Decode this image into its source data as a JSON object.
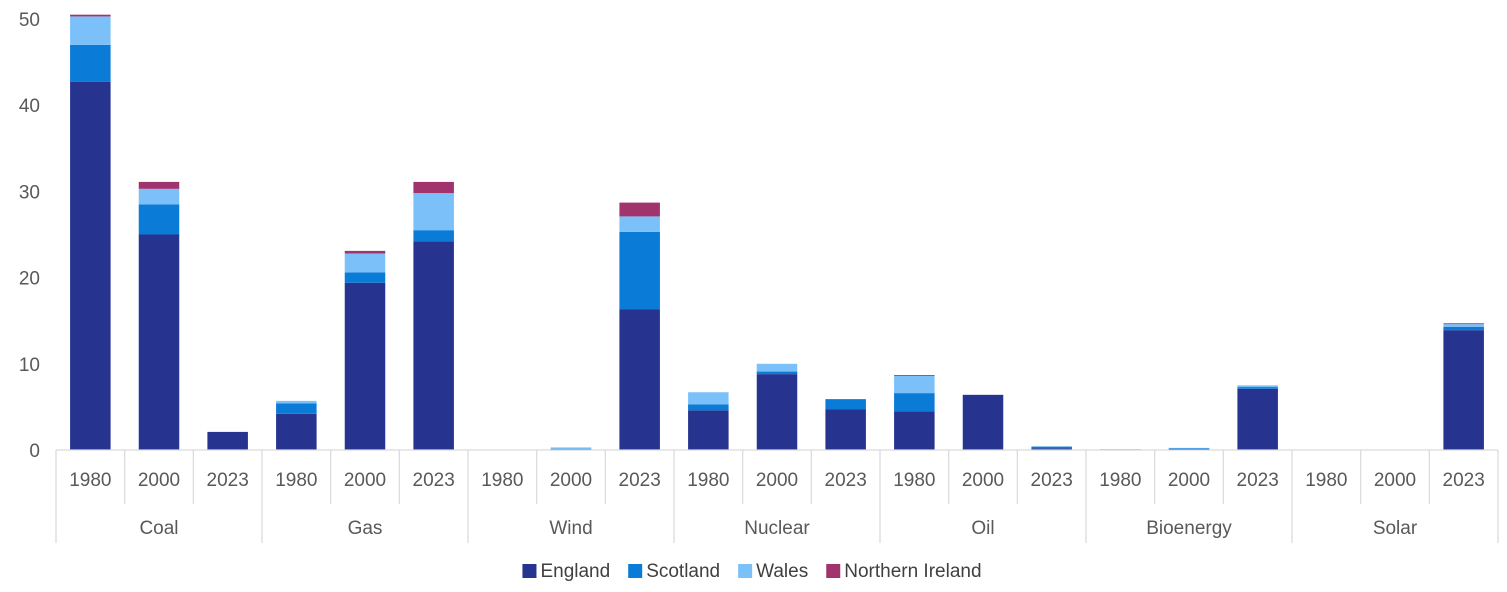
{
  "chart_data": {
    "type": "bar",
    "stacked": true,
    "title": "",
    "xlabel": "",
    "ylabel": "",
    "ylim": [
      0,
      50
    ],
    "yticks": [
      0,
      10,
      20,
      30,
      40,
      50
    ],
    "grid": false,
    "legend_position": "bottom",
    "groups": [
      {
        "label": "Coal",
        "years": [
          "1980",
          "2000",
          "2023"
        ]
      },
      {
        "label": "Gas",
        "years": [
          "1980",
          "2000",
          "2023"
        ]
      },
      {
        "label": "Wind",
        "years": [
          "1980",
          "2000",
          "2023"
        ]
      },
      {
        "label": "Nuclear",
        "years": [
          "1980",
          "2000",
          "2023"
        ]
      },
      {
        "label": "Oil",
        "years": [
          "1980",
          "2000",
          "2023"
        ]
      },
      {
        "label": "Bioenergy",
        "years": [
          "1980",
          "2000",
          "2023"
        ]
      },
      {
        "label": "Solar",
        "years": [
          "1980",
          "2000",
          "2023"
        ]
      }
    ],
    "series": [
      {
        "name": "England",
        "color": "#26338f",
        "values": [
          42.7,
          25.0,
          2.1,
          4.2,
          19.4,
          24.2,
          0.0,
          0.1,
          16.3,
          4.6,
          8.8,
          4.7,
          4.5,
          6.4,
          0.2,
          0.05,
          0.15,
          7.1,
          0.0,
          0.0,
          13.9
        ]
      },
      {
        "name": "Scotland",
        "color": "#0a7bd6",
        "values": [
          4.3,
          3.5,
          0.0,
          1.2,
          1.2,
          1.3,
          0.0,
          0.05,
          9.0,
          0.7,
          0.3,
          1.2,
          2.1,
          0.0,
          0.2,
          0.02,
          0.05,
          0.2,
          0.0,
          0.0,
          0.4
        ]
      },
      {
        "name": "Wales",
        "color": "#7cc0fa",
        "values": [
          3.3,
          1.8,
          0.0,
          0.3,
          2.2,
          4.3,
          0.0,
          0.15,
          1.8,
          1.4,
          0.9,
          0.0,
          2.0,
          0.0,
          0.0,
          0.03,
          0.05,
          0.2,
          0.0,
          0.0,
          0.3
        ]
      },
      {
        "name": "Northern Ireland",
        "color": "#a1346c",
        "values": [
          0.2,
          0.8,
          0.0,
          0.0,
          0.3,
          1.3,
          0.0,
          0.0,
          1.6,
          0.0,
          0.0,
          0.0,
          0.1,
          0.0,
          0.0,
          0.0,
          0.0,
          0.0,
          0.0,
          0.0,
          0.1
        ]
      }
    ]
  }
}
